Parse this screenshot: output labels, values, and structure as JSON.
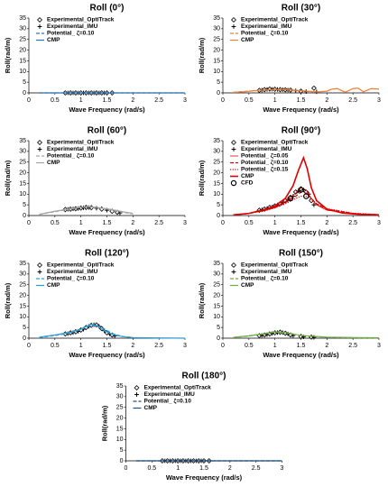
{
  "chart_data": [
    {
      "type": "line",
      "title": "Roll (0°)",
      "ylabel": "Roll(rad/m)",
      "xlabel": "Wave Frequency (rad/s)",
      "xlim": [
        0,
        3
      ],
      "xticks": [
        0,
        0.5,
        1,
        1.5,
        2,
        2.5,
        3
      ],
      "ylim": [
        0,
        35
      ],
      "yticks": [
        0,
        5,
        10,
        15,
        20,
        25,
        30,
        35
      ],
      "series": [
        {
          "name": "Experimental_OptiTrack",
          "color": "#000000",
          "marker": "diamond",
          "x": [
            0.7,
            0.8,
            0.9,
            1.0,
            1.1,
            1.2,
            1.3,
            1.4,
            1.5,
            1.6
          ],
          "values": [
            0,
            0,
            0,
            0,
            0,
            0,
            0,
            0,
            0,
            0
          ]
        },
        {
          "name": "Experimental_IMU",
          "color": "#000000",
          "marker": "plus",
          "x": [
            0.75,
            0.85,
            0.95,
            1.05,
            1.15,
            1.25,
            1.35,
            1.45
          ],
          "values": [
            0,
            0,
            0,
            0,
            0,
            0,
            0,
            0
          ]
        },
        {
          "name": "Potential_ ζ=0.10",
          "color": "#2e75b6",
          "dash": "dashed",
          "x": [
            0.2,
            0.5,
            1.0,
            1.5,
            2.0,
            2.5,
            3.0
          ],
          "values": [
            0,
            0,
            0,
            0,
            0,
            0,
            0
          ]
        },
        {
          "name": "CMP",
          "color": "#2e75b6",
          "dash": "solid",
          "x": [
            0.2,
            0.5,
            1.0,
            1.5,
            2.0,
            2.5,
            3.0
          ],
          "values": [
            0,
            0,
            0,
            0,
            0,
            0,
            0
          ]
        }
      ]
    },
    {
      "type": "line",
      "title": "Roll (30°)",
      "ylabel": "Roll(rad/m)",
      "xlabel": "Wave Frequency (rad/s)",
      "xlim": [
        0,
        3
      ],
      "xticks": [
        0,
        0.5,
        1,
        1.5,
        2,
        2.5,
        3
      ],
      "ylim": [
        0,
        35
      ],
      "yticks": [
        0,
        5,
        10,
        15,
        20,
        25,
        30,
        35
      ],
      "series": [
        {
          "name": "Experimental_OptiTrack",
          "color": "#000000",
          "marker": "diamond",
          "x": [
            0.7,
            0.8,
            0.9,
            1.0,
            1.1,
            1.2,
            1.3,
            1.5,
            1.75
          ],
          "values": [
            1.2,
            1.5,
            1.8,
            1.7,
            1.5,
            1.4,
            1.3,
            0.8,
            2.2
          ]
        },
        {
          "name": "Experimental_IMU",
          "color": "#000000",
          "marker": "plus",
          "x": [
            0.75,
            0.85,
            0.95,
            1.05,
            1.15,
            1.25,
            1.4,
            1.6,
            1.8
          ],
          "values": [
            1.3,
            1.6,
            1.7,
            1.6,
            1.5,
            1.3,
            1.0,
            0.6,
            0.5
          ]
        },
        {
          "name": "Potential_ ζ=0.10",
          "color": "#ed7d31",
          "dash": "dashed",
          "x": [
            0.2,
            0.5,
            0.8,
            1.0,
            1.2,
            1.5,
            1.8
          ],
          "values": [
            0.3,
            0.8,
            1.3,
            1.5,
            1.4,
            1.0,
            0.5
          ]
        },
        {
          "name": "CMP",
          "color": "#ed7d31",
          "dash": "solid",
          "x": [
            0.2,
            0.4,
            0.6,
            0.8,
            1.0,
            1.2,
            1.4,
            1.6,
            1.8,
            2.0,
            2.1,
            2.2,
            2.35,
            2.5,
            2.6,
            2.7,
            2.85,
            3.0
          ],
          "values": [
            0.2,
            0.5,
            1.0,
            1.4,
            1.6,
            1.5,
            1.2,
            0.8,
            0.4,
            0.8,
            1.8,
            2.0,
            0.3,
            2.0,
            2.2,
            0.5,
            2.0,
            1.8
          ]
        }
      ]
    },
    {
      "type": "line",
      "title": "Roll (60°)",
      "ylabel": "Roll(rad/m)",
      "xlabel": "Wave Frequency (rad/s)",
      "xlim": [
        0,
        3
      ],
      "xticks": [
        0,
        0.5,
        1,
        1.5,
        2,
        2.5,
        3
      ],
      "ylim": [
        0,
        35
      ],
      "yticks": [
        0,
        5,
        10,
        15,
        20,
        25,
        30,
        35
      ],
      "series": [
        {
          "name": "Experimental_OptiTrack",
          "color": "#000000",
          "marker": "diamond",
          "x": [
            0.7,
            0.8,
            0.9,
            1.0,
            1.1,
            1.2,
            1.4,
            1.6,
            1.7
          ],
          "values": [
            2.8,
            3.0,
            3.2,
            3.5,
            3.8,
            3.7,
            3.0,
            2.0,
            1.5
          ]
        },
        {
          "name": "Experimental_IMU",
          "color": "#000000",
          "marker": "plus",
          "x": [
            0.75,
            0.85,
            0.95,
            1.05,
            1.15,
            1.3,
            1.5,
            1.75
          ],
          "values": [
            2.9,
            3.1,
            3.3,
            3.6,
            3.7,
            3.4,
            2.5,
            1.2
          ]
        },
        {
          "name": "Potential_ ζ=0.10",
          "color": "#a5a5a5",
          "dash": "dashed",
          "x": [
            0.2,
            0.5,
            0.8,
            1.0,
            1.2,
            1.5,
            1.8,
            2.0
          ],
          "values": [
            0.5,
            1.8,
            3.0,
            3.8,
            4.0,
            3.0,
            1.5,
            0.8
          ]
        },
        {
          "name": "CMP",
          "color": "#a5a5a5",
          "dash": "solid",
          "x": [
            0.2,
            0.5,
            0.8,
            1.0,
            1.2,
            1.5,
            1.8,
            2.0
          ],
          "values": [
            0.6,
            2.0,
            3.2,
            3.9,
            4.1,
            3.2,
            1.8,
            1.0
          ]
        }
      ]
    },
    {
      "type": "line",
      "title": "Roll (90°)",
      "ylabel": "Roll(rad/m)",
      "xlabel": "Wave Frequency (rad/s)",
      "xlim": [
        0,
        3
      ],
      "xticks": [
        0,
        0.5,
        1,
        1.5,
        2,
        2.5,
        3
      ],
      "ylim": [
        0,
        35
      ],
      "yticks": [
        0,
        5,
        10,
        15,
        20,
        25,
        30,
        35
      ],
      "series": [
        {
          "name": "Experimental_OptiTrack",
          "color": "#000000",
          "marker": "diamond",
          "x": [
            0.7,
            0.8,
            0.9,
            1.0,
            1.1,
            1.2,
            1.3,
            1.4,
            1.5,
            1.6,
            1.7
          ],
          "values": [
            2.5,
            3.0,
            3.8,
            4.5,
            5.5,
            7,
            8.5,
            11,
            12.5,
            11,
            7
          ]
        },
        {
          "name": "Experimental_IMU",
          "color": "#000000",
          "marker": "plus",
          "x": [
            0.75,
            0.85,
            0.95,
            1.05,
            1.15,
            1.25,
            1.35,
            1.45,
            1.55,
            1.65,
            1.75
          ],
          "values": [
            2.7,
            3.3,
            4.0,
            5.0,
            6.0,
            7.5,
            9,
            11.5,
            12,
            10,
            5
          ]
        },
        {
          "name": "Potential_ ζ=0.05",
          "color": "#e00000",
          "dash": "solid",
          "width": 0.8,
          "x": [
            0.2,
            0.5,
            0.8,
            1.0,
            1.2,
            1.4,
            1.5,
            1.6,
            1.7,
            1.8,
            2.0,
            2.5,
            3.0
          ],
          "values": [
            0.3,
            1,
            2.5,
            4,
            6.5,
            10.5,
            13,
            12,
            8,
            5,
            2.5,
            0.8,
            0.3
          ]
        },
        {
          "name": "Potential_ ζ=0.10",
          "color": "#e00000",
          "dash": "dashed",
          "x": [
            0.2,
            0.5,
            0.8,
            1.0,
            1.2,
            1.4,
            1.5,
            1.6,
            1.7,
            1.8,
            2.0,
            2.5,
            3.0
          ],
          "values": [
            0.3,
            1,
            2.4,
            3.8,
            6,
            9,
            11,
            10.5,
            8,
            5.5,
            3,
            1,
            0.4
          ]
        },
        {
          "name": "Potential_ ζ=0.15",
          "color": "#e00000",
          "dash": "dotted",
          "x": [
            0.2,
            0.5,
            0.8,
            1.0,
            1.2,
            1.4,
            1.5,
            1.6,
            1.7,
            1.8,
            2.0,
            2.5,
            3.0
          ],
          "values": [
            0.3,
            1,
            2.3,
            3.6,
            5.5,
            8,
            9,
            9,
            7.5,
            5.5,
            3.2,
            1.1,
            0.4
          ]
        },
        {
          "name": "CMP",
          "color": "#e00000",
          "dash": "solid",
          "width": 1.6,
          "x": [
            0.2,
            0.5,
            0.8,
            1.0,
            1.2,
            1.35,
            1.45,
            1.55,
            1.62,
            1.7,
            1.8,
            2.0,
            2.3,
            2.6,
            3.0
          ],
          "values": [
            0.3,
            1,
            2.8,
            4.5,
            8,
            14,
            21,
            27,
            22,
            13,
            7,
            3,
            1.2,
            0.6,
            0.3
          ]
        },
        {
          "name": "CFD",
          "color": "#000000",
          "marker": "circle",
          "x": [
            1.3,
            1.5,
            1.6
          ],
          "values": [
            8,
            12,
            9
          ]
        }
      ]
    },
    {
      "type": "line",
      "title": "Roll (120°)",
      "ylabel": "Roll(rad/m)",
      "xlabel": "Wave Frequency (rad/s)",
      "xlim": [
        0,
        3
      ],
      "xticks": [
        0,
        0.5,
        1,
        1.5,
        2,
        2.5,
        3
      ],
      "ylim": [
        0,
        35
      ],
      "yticks": [
        0,
        5,
        10,
        15,
        20,
        25,
        30,
        35
      ],
      "series": [
        {
          "name": "Experimental_OptiTrack",
          "color": "#000000",
          "marker": "diamond",
          "x": [
            0.7,
            0.8,
            0.9,
            1.0,
            1.1,
            1.2,
            1.3,
            1.4,
            1.5,
            1.6
          ],
          "values": [
            2,
            2.5,
            3,
            3.8,
            5,
            6,
            6.2,
            4.5,
            2.5,
            1.5
          ]
        },
        {
          "name": "Experimental_IMU",
          "color": "#000000",
          "marker": "plus",
          "x": [
            0.75,
            0.85,
            0.95,
            1.05,
            1.15,
            1.25,
            1.35,
            1.45,
            1.55,
            1.65
          ],
          "values": [
            2.1,
            2.6,
            3.2,
            4.2,
            5.5,
            6.3,
            5.5,
            3.5,
            2,
            1
          ]
        },
        {
          "name": "Potential_ ζ=0.10",
          "color": "#2e9bd6",
          "dash": "dashed",
          "x": [
            0.2,
            0.5,
            0.8,
            1.0,
            1.2,
            1.4,
            1.6,
            1.8,
            2.0
          ],
          "values": [
            0.3,
            1.2,
            2.5,
            4,
            6.2,
            5,
            2.2,
            0.8,
            0.3
          ]
        },
        {
          "name": "CMP",
          "color": "#2e9bd6",
          "dash": "solid",
          "x": [
            0.2,
            0.5,
            0.8,
            1.0,
            1.1,
            1.2,
            1.3,
            1.45,
            1.6,
            1.8,
            2.0,
            2.5,
            3.0
          ],
          "values": [
            0.5,
            1.5,
            2.8,
            4.2,
            5.5,
            6.5,
            6.0,
            3.5,
            1.8,
            0.7,
            0.3,
            0.1,
            0
          ]
        }
      ]
    },
    {
      "type": "line",
      "title": "Roll (150°)",
      "ylabel": "Roll(rad/m)",
      "xlabel": "Wave Frequency (rad/s)",
      "xlim": [
        0,
        3
      ],
      "xticks": [
        0,
        0.5,
        1,
        1.5,
        2,
        2.5,
        3
      ],
      "ylim": [
        0,
        35
      ],
      "yticks": [
        0,
        5,
        10,
        15,
        20,
        25,
        30,
        35
      ],
      "series": [
        {
          "name": "Experimental_OptiTrack",
          "color": "#000000",
          "marker": "diamond",
          "x": [
            0.7,
            0.8,
            0.9,
            1.0,
            1.1,
            1.2,
            1.3,
            1.5,
            1.7
          ],
          "values": [
            1.2,
            1.5,
            2,
            2.5,
            2.8,
            2.3,
            1.5,
            0.8,
            0.5
          ]
        },
        {
          "name": "Experimental_IMU",
          "color": "#000000",
          "marker": "plus",
          "x": [
            0.75,
            0.85,
            0.95,
            1.05,
            1.15,
            1.25,
            1.35,
            1.55,
            1.75
          ],
          "values": [
            1.3,
            1.7,
            2.2,
            2.6,
            2.6,
            2,
            1.2,
            0.6,
            0.4
          ]
        },
        {
          "name": "Potential_ ζ=0.10",
          "color": "#70ad47",
          "dash": "dashed",
          "x": [
            0.2,
            0.5,
            0.8,
            1.0,
            1.2,
            1.5,
            2.0,
            2.5,
            3.0
          ],
          "values": [
            0.3,
            1,
            2,
            2.8,
            2.5,
            1.2,
            0.4,
            0.2,
            0.1
          ]
        },
        {
          "name": "CMP",
          "color": "#70ad47",
          "dash": "solid",
          "x": [
            0.2,
            0.5,
            0.8,
            1.0,
            1.2,
            1.5,
            2.0,
            2.5,
            3.0
          ],
          "values": [
            0.4,
            1.1,
            2.1,
            3,
            2.6,
            1.3,
            0.5,
            0.3,
            0.2
          ]
        }
      ]
    },
    {
      "type": "line",
      "title": "Roll (180°)",
      "ylabel": "Roll(rad/m)",
      "xlabel": "Wave Frequency (rad/s)",
      "xlim": [
        0,
        3
      ],
      "xticks": [
        0,
        0.5,
        1,
        1.5,
        2,
        2.5,
        3
      ],
      "ylim": [
        0,
        35
      ],
      "yticks": [
        0,
        5,
        10,
        15,
        20,
        25,
        30,
        35
      ],
      "series": [
        {
          "name": "Experimental_OptiTrack",
          "color": "#000000",
          "marker": "diamond",
          "x": [
            0.7,
            0.8,
            0.9,
            1.0,
            1.1,
            1.2,
            1.3,
            1.4,
            1.5,
            1.6
          ],
          "values": [
            0,
            0,
            0,
            0,
            0,
            0,
            0,
            0,
            0,
            0
          ]
        },
        {
          "name": "Experimental_IMU",
          "color": "#000000",
          "marker": "plus",
          "x": [
            0.75,
            0.85,
            0.95,
            1.05,
            1.15,
            1.25,
            1.35,
            1.45
          ],
          "values": [
            0,
            0,
            0,
            0,
            0,
            0,
            0,
            0
          ]
        },
        {
          "name": "Potential_ ζ=0.10",
          "color": "#1f4e79",
          "dash": "dashed",
          "x": [
            0.2,
            0.5,
            1.0,
            1.5,
            2.0,
            2.5,
            3.0
          ],
          "values": [
            0,
            0,
            0,
            0,
            0,
            0,
            0
          ]
        },
        {
          "name": "CMP",
          "color": "#1f4e79",
          "dash": "solid",
          "x": [
            0.2,
            0.5,
            1.0,
            1.5,
            2.0,
            2.5,
            3.0
          ],
          "values": [
            0,
            0,
            0,
            0,
            0,
            0,
            0
          ]
        }
      ]
    }
  ]
}
